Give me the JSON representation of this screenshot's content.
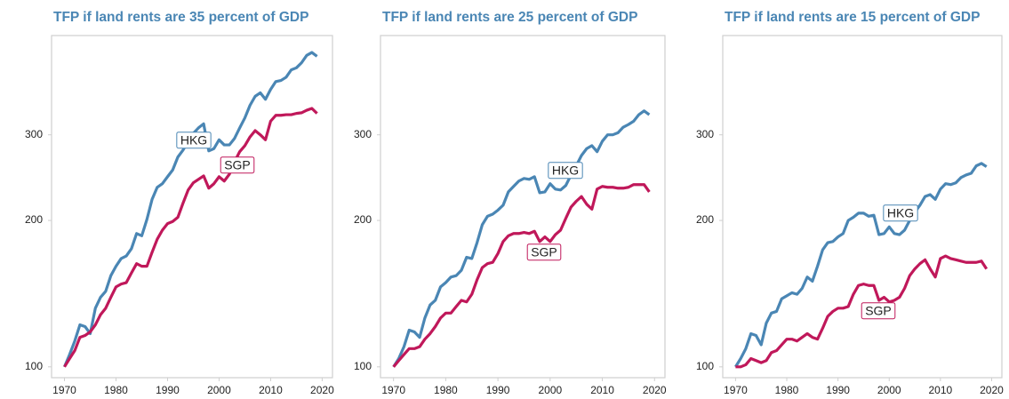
{
  "chart_data": [
    {
      "type": "line",
      "title": "TFP if land rents are 35 percent of GDP",
      "x": [
        1970,
        1971,
        1972,
        1973,
        1974,
        1975,
        1976,
        1977,
        1978,
        1979,
        1980,
        1981,
        1982,
        1983,
        1984,
        1985,
        1986,
        1987,
        1988,
        1989,
        1990,
        1991,
        1992,
        1993,
        1994,
        1995,
        1996,
        1997,
        1998,
        1999,
        2000,
        2001,
        2002,
        2003,
        2004,
        2005,
        2006,
        2007,
        2008,
        2009,
        2010,
        2011,
        2012,
        2013,
        2014,
        2015,
        2016,
        2017,
        2018,
        2019
      ],
      "series": [
        {
          "name": "HKG",
          "color": "#4a86b4",
          "values": [
            100,
            106,
            113,
            122,
            121,
            117,
            132,
            139,
            143,
            154,
            161,
            167,
            169,
            175,
            188,
            186,
            201,
            221,
            234,
            238,
            246,
            254,
            270,
            279,
            291,
            302,
            310,
            316,
            278,
            281,
            293,
            286,
            286,
            295,
            310,
            325,
            345,
            360,
            366,
            355,
            372,
            386,
            388,
            394,
            408,
            412,
            422,
            437,
            443,
            435
          ]
        },
        {
          "name": "SGP",
          "color": "#c0185a",
          "values": [
            100,
            104,
            108,
            115,
            116,
            118,
            122,
            128,
            132,
            139,
            146,
            148,
            149,
            156,
            163,
            161,
            161,
            172,
            183,
            191,
            197,
            199,
            203,
            217,
            231,
            239,
            243,
            247,
            233,
            238,
            246,
            241,
            249,
            264,
            277,
            285,
            297,
            306,
            300,
            293,
            320,
            329,
            329,
            330,
            330,
            332,
            333,
            337,
            340,
            332
          ]
        }
      ],
      "xlim": [
        1967.5,
        2022
      ],
      "xticks": [
        1970,
        1980,
        1990,
        2000,
        2010,
        2020
      ],
      "ylim": [
        95,
        480
      ],
      "yticks": [
        100,
        200,
        300
      ],
      "log_scale": true
    },
    {
      "type": "line",
      "title": "TFP if land rents are 25 percent of GDP",
      "x": [
        1970,
        1971,
        1972,
        1973,
        1974,
        1975,
        1976,
        1977,
        1978,
        1979,
        1980,
        1981,
        1982,
        1983,
        1984,
        1985,
        1986,
        1987,
        1988,
        1989,
        1990,
        1991,
        1992,
        1993,
        1994,
        1995,
        1996,
        1997,
        1998,
        1999,
        2000,
        2001,
        2002,
        2003,
        2004,
        2005,
        2006,
        2007,
        2008,
        2009,
        2010,
        2011,
        2012,
        2013,
        2014,
        2015,
        2016,
        2017,
        2018,
        2019
      ],
      "series": [
        {
          "name": "HKG",
          "color": "#4a86b4",
          "values": [
            100,
            104,
            110,
            119,
            118,
            115,
            126,
            134,
            137,
            146,
            149,
            153,
            154,
            158,
            168,
            167,
            180,
            196,
            204,
            206,
            210,
            215,
            229,
            235,
            241,
            244,
            243,
            246,
            228,
            229,
            238,
            232,
            231,
            236,
            248,
            259,
            272,
            281,
            285,
            277,
            291,
            300,
            300,
            303,
            311,
            315,
            320,
            330,
            336,
            330
          ]
        },
        {
          "name": "SGP",
          "color": "#c0185a",
          "values": [
            100,
            103,
            106,
            109,
            109,
            110,
            114,
            117,
            121,
            126,
            129,
            129,
            133,
            137,
            136,
            141,
            151,
            160,
            163,
            164,
            171,
            181,
            186,
            188,
            188,
            189,
            188,
            190,
            181,
            185,
            181,
            187,
            191,
            202,
            213,
            219,
            224,
            216,
            211,
            232,
            235,
            234,
            234,
            233,
            233,
            234,
            237,
            237,
            237,
            229
          ]
        }
      ],
      "xlim": [
        1967.5,
        2022
      ],
      "xticks": [
        1970,
        1980,
        1990,
        2000,
        2010,
        2020
      ],
      "ylim": [
        95,
        480
      ],
      "yticks": [
        100,
        200,
        300
      ],
      "log_scale": true
    },
    {
      "type": "line",
      "title": "TFP if land rents are 15 percent of GDP",
      "x": [
        1970,
        1971,
        1972,
        1973,
        1974,
        1975,
        1976,
        1977,
        1978,
        1979,
        1980,
        1981,
        1982,
        1983,
        1984,
        1985,
        1986,
        1987,
        1988,
        1989,
        1990,
        1991,
        1992,
        1993,
        1994,
        1995,
        1996,
        1997,
        1998,
        1999,
        2000,
        2001,
        2002,
        2003,
        2004,
        2005,
        2006,
        2007,
        2008,
        2009,
        2010,
        2011,
        2012,
        2013,
        2014,
        2015,
        2016,
        2017,
        2018,
        2019
      ],
      "series": [
        {
          "name": "HKG",
          "color": "#4a86b4",
          "values": [
            100,
            104,
            109,
            117,
            116,
            111,
            123,
            129,
            130,
            138,
            140,
            142,
            141,
            145,
            153,
            150,
            161,
            174,
            180,
            181,
            185,
            188,
            200,
            203,
            207,
            207,
            204,
            205,
            187,
            188,
            194,
            188,
            187,
            191,
            200,
            208,
            215,
            224,
            226,
            221,
            232,
            238,
            237,
            239,
            245,
            248,
            250,
            259,
            262,
            258
          ]
        },
        {
          "name": "SGP",
          "color": "#c0185a",
          "values": [
            100,
            100,
            101,
            104,
            103,
            102,
            103,
            107,
            108,
            111,
            114,
            114,
            113,
            115,
            117,
            115,
            114,
            120,
            127,
            130,
            132,
            132,
            133,
            141,
            147,
            148,
            147,
            147,
            137,
            139,
            136,
            137,
            139,
            145,
            154,
            159,
            163,
            166,
            159,
            153,
            167,
            169,
            167,
            166,
            165,
            164,
            164,
            164,
            165,
            159
          ]
        }
      ],
      "xlim": [
        1967.5,
        2022
      ],
      "xticks": [
        1970,
        1980,
        1990,
        2000,
        2010,
        2020
      ],
      "ylim": [
        95,
        480
      ],
      "yticks": [
        100,
        200,
        300
      ],
      "log_scale": true
    }
  ]
}
